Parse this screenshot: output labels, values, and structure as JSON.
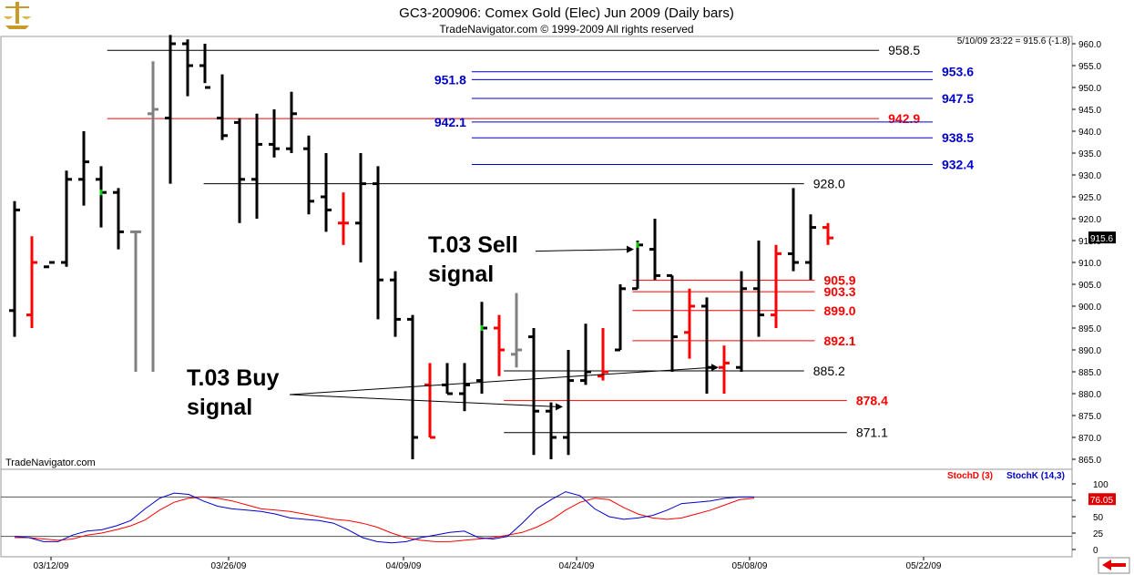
{
  "header": {
    "title": "GC3-200906:  Comex Gold (Elec) Jun 2009  (Daily bars)",
    "subtitle": "TradeNavigator.com © 1999-2009 All rights reserved",
    "status": "5/10/09 23:22 = 915.6 (-1.8)",
    "watermark": "TradeNavigator.com"
  },
  "colors": {
    "background": "#ffffff",
    "up_bar": "#000000",
    "down_bar": "#ff0000",
    "neutral_bar": "#808080",
    "tick_flat": "#00cc00",
    "level_black": "#000000",
    "level_red": "#ff0000",
    "level_blue": "#0000cc",
    "stoch_d": "#ff0000",
    "stoch_k": "#0000cc"
  },
  "chart_data": [
    {
      "type": "ohlc",
      "price_axis": {
        "min": 865,
        "max": 960,
        "ticks": [
          "960.0",
          "955.0",
          "950.0",
          "945.0",
          "940.0",
          "935.0",
          "930.0",
          "925.0",
          "920.0",
          "915.0",
          "910.0",
          "905.0",
          "900.0",
          "895.0",
          "890.0",
          "885.0",
          "880.0",
          "875.0",
          "870.0",
          "865.0"
        ],
        "last_price_label": "915.6",
        "last_price": 915.6
      },
      "date_labels": [
        "03/12/09",
        "03/26/09",
        "04/09/09",
        "04/24/09",
        "05/08/09",
        "05/22/09"
      ],
      "bars": [
        {
          "o": 899,
          "h": 924,
          "l": 893,
          "c": 922,
          "col": "up_bar"
        },
        {
          "o": 898,
          "h": 916,
          "l": 895,
          "c": 910,
          "col": "down_bar"
        },
        {
          "o": 909,
          "h": 910,
          "l": 910,
          "c": 910,
          "col": "up_bar"
        },
        {
          "o": 910,
          "h": 931,
          "l": 909,
          "c": 929,
          "col": "up_bar"
        },
        {
          "o": 929,
          "h": 940,
          "l": 923,
          "c": 933,
          "col": "up_bar"
        },
        {
          "o": 929,
          "h": 932,
          "l": 918,
          "c": 926,
          "col": "up_bar",
          "tick": "tick_flat"
        },
        {
          "o": 926,
          "h": 927,
          "l": 913,
          "c": 917,
          "col": "up_bar"
        },
        {
          "o": 917,
          "h": 917,
          "l": 885,
          "c": 917,
          "col": "neutral_bar"
        },
        {
          "o": 944,
          "h": 956,
          "l": 885,
          "c": 945,
          "col": "neutral_bar"
        },
        {
          "o": 943,
          "h": 962,
          "l": 928,
          "c": 960,
          "col": "up_bar"
        },
        {
          "o": 960,
          "h": 961,
          "l": 948,
          "c": 955,
          "col": "up_bar"
        },
        {
          "o": 955,
          "h": 960,
          "l": 951,
          "c": 950,
          "col": "up_bar"
        },
        {
          "o": 943,
          "h": 953,
          "l": 938,
          "c": 939,
          "col": "up_bar"
        },
        {
          "o": 942,
          "h": 943,
          "l": 919,
          "c": 929,
          "col": "up_bar"
        },
        {
          "o": 929,
          "h": 944,
          "l": 920,
          "c": 937,
          "col": "up_bar"
        },
        {
          "o": 937,
          "h": 945,
          "l": 934,
          "c": 936,
          "col": "up_bar"
        },
        {
          "o": 936,
          "h": 949,
          "l": 935,
          "c": 944,
          "col": "up_bar"
        },
        {
          "o": 936,
          "h": 939,
          "l": 921,
          "c": 924,
          "col": "up_bar"
        },
        {
          "o": 925,
          "h": 935,
          "l": 917,
          "c": 922,
          "col": "up_bar"
        },
        {
          "o": 919,
          "h": 926,
          "l": 914,
          "c": 919,
          "col": "down_bar"
        },
        {
          "o": 919,
          "h": 935,
          "l": 910,
          "c": 928,
          "col": "up_bar"
        },
        {
          "o": 928,
          "h": 932,
          "l": 897,
          "c": 906,
          "col": "up_bar"
        },
        {
          "o": 906,
          "h": 908,
          "l": 893,
          "c": 897,
          "col": "up_bar"
        },
        {
          "o": 897,
          "h": 898,
          "l": 865,
          "c": 870,
          "col": "up_bar"
        },
        {
          "o": 882,
          "h": 887,
          "l": 870,
          "c": 870,
          "col": "down_bar"
        },
        {
          "o": 882,
          "h": 887,
          "l": 880,
          "c": 880,
          "col": "up_bar"
        },
        {
          "o": 880,
          "h": 887,
          "l": 876,
          "c": 882,
          "col": "up_bar"
        },
        {
          "o": 883,
          "h": 901,
          "l": 880,
          "c": 895,
          "col": "up_bar",
          "tick": "tick_flat"
        },
        {
          "o": 895,
          "h": 898,
          "l": 884,
          "c": 890,
          "col": "down_bar"
        },
        {
          "o": 889,
          "h": 903,
          "l": 886,
          "c": 890,
          "col": "neutral_bar"
        },
        {
          "o": 893,
          "h": 895,
          "l": 866,
          "c": 876,
          "col": "up_bar"
        },
        {
          "o": 876,
          "h": 878,
          "l": 865,
          "c": 870,
          "col": "up_bar"
        },
        {
          "o": 870,
          "h": 890,
          "l": 866,
          "c": 883,
          "col": "up_bar"
        },
        {
          "o": 883,
          "h": 896,
          "l": 882,
          "c": 885,
          "col": "up_bar"
        },
        {
          "o": 884,
          "h": 895,
          "l": 883,
          "c": 885,
          "col": "down_bar"
        },
        {
          "o": 890,
          "h": 905,
          "l": 890,
          "c": 904,
          "col": "up_bar"
        },
        {
          "o": 904,
          "h": 915,
          "l": 904,
          "c": 914,
          "col": "up_bar",
          "tick": "tick_flat"
        },
        {
          "o": 913,
          "h": 920,
          "l": 906,
          "c": 907,
          "col": "up_bar"
        },
        {
          "o": 907,
          "h": 907,
          "l": 885,
          "c": 893,
          "col": "up_bar"
        },
        {
          "o": 894,
          "h": 904,
          "l": 888,
          "c": 900,
          "col": "down_bar"
        },
        {
          "o": 900,
          "h": 902,
          "l": 880,
          "c": 886,
          "col": "up_bar"
        },
        {
          "o": 886,
          "h": 891,
          "l": 880,
          "c": 887,
          "col": "down_bar"
        },
        {
          "o": 886,
          "h": 908,
          "l": 885,
          "c": 904,
          "col": "up_bar"
        },
        {
          "o": 904,
          "h": 915,
          "l": 893,
          "c": 898,
          "col": "up_bar"
        },
        {
          "o": 898,
          "h": 914,
          "l": 895,
          "c": 912,
          "col": "down_bar"
        },
        {
          "o": 912,
          "h": 927,
          "l": 908,
          "c": 910,
          "col": "up_bar"
        },
        {
          "o": 910,
          "h": 921,
          "l": 906,
          "c": 918,
          "col": "up_bar"
        },
        {
          "o": 918,
          "h": 919,
          "l": 914,
          "c": 915.6,
          "col": "down_bar"
        }
      ],
      "levels": [
        {
          "value": 958.5,
          "label": "958.5",
          "col": "level_black",
          "x0": 0.1,
          "x1": 0.82,
          "label_side": "right"
        },
        {
          "value": 953.6,
          "label": "953.6",
          "col": "level_blue",
          "x0": 0.44,
          "x1": 0.87,
          "label_side": "right"
        },
        {
          "value": 951.8,
          "label": "951.8",
          "col": "level_blue",
          "x0": 0.44,
          "x1": 0.87,
          "label_side": "left"
        },
        {
          "value": 947.5,
          "label": "947.5",
          "col": "level_blue",
          "x0": 0.44,
          "x1": 0.87,
          "label_side": "right"
        },
        {
          "value": 942.9,
          "label": "942.9",
          "col": "level_red",
          "x0": 0.1,
          "x1": 0.82,
          "label_side": "right"
        },
        {
          "value": 942.1,
          "label": "942.1",
          "col": "level_blue",
          "x0": 0.44,
          "x1": 0.87,
          "label_side": "left"
        },
        {
          "value": 938.5,
          "label": "938.5",
          "col": "level_blue",
          "x0": 0.44,
          "x1": 0.87,
          "label_side": "right"
        },
        {
          "value": 932.4,
          "label": "932.4",
          "col": "level_blue",
          "x0": 0.44,
          "x1": 0.87,
          "label_side": "right"
        },
        {
          "value": 928.0,
          "label": "928.0",
          "col": "level_black",
          "x0": 0.19,
          "x1": 0.75,
          "label_side": "right"
        },
        {
          "value": 905.9,
          "label": "905.9",
          "col": "level_red",
          "x0": 0.59,
          "x1": 0.76,
          "label_side": "right"
        },
        {
          "value": 903.3,
          "label": "903.3",
          "col": "level_red",
          "x0": 0.59,
          "x1": 0.76,
          "label_side": "right"
        },
        {
          "value": 899.0,
          "label": "899.0",
          "col": "level_red",
          "x0": 0.59,
          "x1": 0.76,
          "label_side": "right"
        },
        {
          "value": 892.1,
          "label": "892.1",
          "col": "level_red",
          "x0": 0.59,
          "x1": 0.76,
          "label_side": "right"
        },
        {
          "value": 885.2,
          "label": "885.2",
          "col": "level_black",
          "x0": 0.47,
          "x1": 0.75,
          "label_side": "right"
        },
        {
          "value": 878.4,
          "label": "878.4",
          "col": "level_red",
          "x0": 0.47,
          "x1": 0.79,
          "label_side": "right"
        },
        {
          "value": 871.1,
          "label": "871.1",
          "col": "level_black",
          "x0": 0.47,
          "x1": 0.79,
          "label_side": "right"
        }
      ],
      "annotations": [
        {
          "lines": [
            "T.03 Sell",
            "signal"
          ],
          "points_to_bar": 36,
          "points_to_price": 913
        },
        {
          "lines": [
            "T.03 Buy",
            "signal"
          ],
          "points_to_bar": [
            32,
            41
          ],
          "points_to_price": [
            877,
            886
          ]
        }
      ]
    },
    {
      "type": "line",
      "title": "",
      "legend": [
        "StochD (3)",
        "StochK (14,3)"
      ],
      "y_axis": {
        "min": 0,
        "max": 100,
        "ticks": [
          "100",
          "75",
          "50",
          "25",
          "0"
        ]
      },
      "reference_lines": [
        80,
        20
      ],
      "last_value_label": "76.05",
      "series": [
        {
          "name": "StochD (3)",
          "col": "stoch_d",
          "values": [
            18,
            18,
            16,
            14,
            16,
            22,
            25,
            30,
            36,
            45,
            60,
            72,
            78,
            80,
            78,
            74,
            68,
            62,
            60,
            58,
            54,
            50,
            46,
            44,
            40,
            34,
            25,
            18,
            14,
            12,
            12,
            14,
            16,
            18,
            22,
            26,
            34,
            45,
            60,
            72,
            78,
            76,
            64,
            54,
            48,
            46,
            48,
            54,
            60,
            68,
            76,
            78
          ]
        },
        {
          "name": "StochK (14,3)",
          "col": "stoch_k",
          "values": [
            20,
            18,
            12,
            12,
            22,
            28,
            30,
            36,
            44,
            62,
            78,
            86,
            84,
            74,
            66,
            62,
            60,
            58,
            54,
            48,
            46,
            44,
            40,
            30,
            18,
            12,
            10,
            12,
            18,
            22,
            26,
            28,
            18,
            16,
            20,
            40,
            62,
            76,
            88,
            82,
            62,
            50,
            46,
            48,
            52,
            60,
            70,
            72,
            74,
            78,
            80,
            80
          ]
        }
      ],
      "date_labels": [
        "03/12/09",
        "03/26/09",
        "04/09/09",
        "04/24/09",
        "05/08/09",
        "05/22/09"
      ]
    }
  ]
}
